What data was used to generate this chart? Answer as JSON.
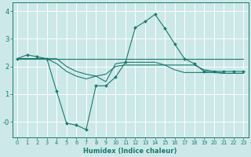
{
  "xlabel": "Humidex (Indice chaleur)",
  "background_color": "#cce8e8",
  "grid_color": "#ffffff",
  "line_color": "#1a7a6e",
  "xlim": [
    -0.5,
    23.5
  ],
  "ylim": [
    -0.55,
    4.3
  ],
  "yticks": [
    0,
    1,
    2,
    3,
    4
  ],
  "ytick_labels": [
    "-0",
    "1",
    "2",
    "3",
    "4"
  ],
  "xticks": [
    0,
    1,
    2,
    3,
    4,
    5,
    6,
    7,
    8,
    9,
    10,
    11,
    12,
    13,
    14,
    15,
    16,
    17,
    18,
    19,
    20,
    21,
    22,
    23
  ],
  "line1_x": [
    0,
    1,
    2,
    3,
    4,
    5,
    6,
    7,
    8,
    9,
    10,
    11,
    12,
    13,
    14,
    15,
    16,
    17,
    18,
    19,
    20,
    21,
    22,
    23
  ],
  "line1_y": [
    2.28,
    2.28,
    2.28,
    2.28,
    2.28,
    2.28,
    2.28,
    2.28,
    2.28,
    2.28,
    2.28,
    2.28,
    2.28,
    2.28,
    2.28,
    2.28,
    2.28,
    2.28,
    2.28,
    2.28,
    2.28,
    2.28,
    2.28,
    2.28
  ],
  "line2_x": [
    0,
    1,
    2,
    3,
    4,
    5,
    6,
    7,
    8,
    9,
    10,
    11,
    12,
    13,
    14,
    15,
    16,
    17,
    18,
    19,
    20,
    21,
    22,
    23
  ],
  "line2_y": [
    2.28,
    2.28,
    2.28,
    2.28,
    2.28,
    2.0,
    1.82,
    1.72,
    1.65,
    1.72,
    2.0,
    2.05,
    2.05,
    2.05,
    2.05,
    2.05,
    2.05,
    2.05,
    2.05,
    1.88,
    1.82,
    1.75,
    1.75,
    1.75
  ],
  "line3_x": [
    0,
    1,
    2,
    3,
    4,
    5,
    6,
    7,
    8,
    9,
    10,
    11,
    12,
    13,
    14,
    15,
    16,
    17,
    18,
    19,
    20,
    21,
    22,
    23
  ],
  "line3_y": [
    2.28,
    2.28,
    2.28,
    2.28,
    2.1,
    1.82,
    1.65,
    1.55,
    1.65,
    1.45,
    2.1,
    2.15,
    2.15,
    2.15,
    2.15,
    2.05,
    1.88,
    1.78,
    1.78,
    1.78,
    1.78,
    1.75,
    1.75,
    1.75
  ],
  "line4_x": [
    0,
    1,
    2,
    3,
    4,
    5,
    6,
    7,
    8,
    9,
    10,
    11,
    12,
    13,
    14,
    15,
    16,
    17,
    18,
    19,
    20,
    21,
    22,
    23
  ],
  "line4_y": [
    2.28,
    2.42,
    2.35,
    2.28,
    1.1,
    -0.05,
    -0.12,
    -0.28,
    1.3,
    1.3,
    1.62,
    2.15,
    3.4,
    3.62,
    3.88,
    3.38,
    2.82,
    2.28,
    2.1,
    1.82,
    1.82,
    1.82,
    1.82,
    1.82
  ]
}
